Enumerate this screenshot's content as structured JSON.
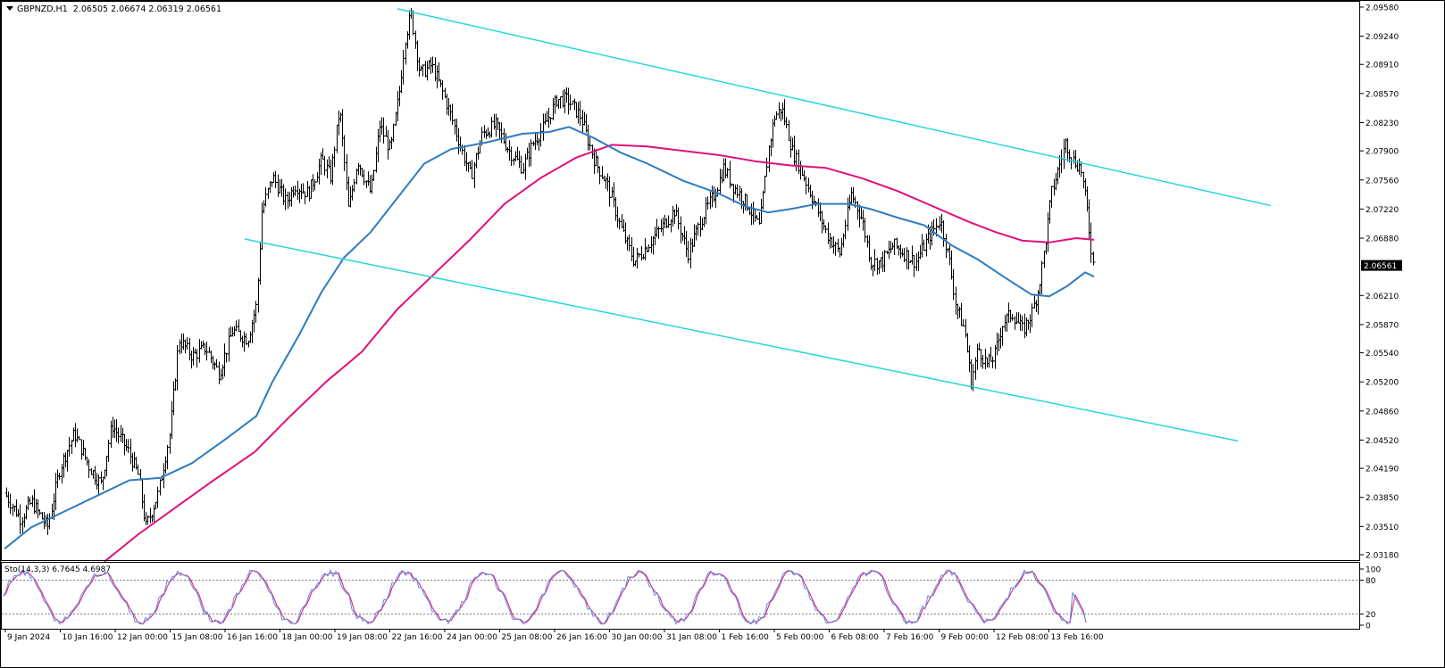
{
  "header": {
    "symbol": "GBPNZD,H1",
    "ohlc": "2.06505 2.06674 2.06319 2.06561"
  },
  "colors": {
    "price_bars": "#000000",
    "ma_fast": "#2f7bbf",
    "ma_slow": "#e0107a",
    "channel": "#27d7d7",
    "stoch_main": "#5a8fe0",
    "stoch_signal": "#e0107a",
    "current_price_bg": "#000000"
  },
  "chart_data": [
    {
      "type": "line",
      "title": "GBPNZD,H1",
      "ylim": [
        2.0318,
        2.0959
      ],
      "y_ticks": [
        "2.09580",
        "2.09240",
        "2.08910",
        "2.08570",
        "2.08230",
        "2.07900",
        "2.07560",
        "2.07220",
        "2.06880",
        "2.06561",
        "2.06210",
        "2.05870",
        "2.05540",
        "2.05200",
        "2.04860",
        "2.04520",
        "2.04190",
        "2.03850",
        "2.03510",
        "2.03180"
      ],
      "current_price": "2.06561",
      "x_labels": [
        "9 Jan 2024",
        "10 Jan 16:00",
        "12 Jan 00:00",
        "15 Jan 08:00",
        "16 Jan 16:00",
        "18 Jan 00:00",
        "19 Jan 08:00",
        "22 Jan 16:00",
        "24 Jan 00:00",
        "25 Jan 08:00",
        "26 Jan 16:00",
        "30 Jan 00:00",
        "31 Jan 08:00",
        "1 Feb 16:00",
        "5 Feb 00:00",
        "6 Feb 08:00",
        "7 Feb 16:00",
        "9 Feb 00:00",
        "12 Feb 08:00",
        "13 Feb 16:00"
      ],
      "price_path": [
        [
          0,
          2.039
        ],
        [
          18,
          2.036
        ],
        [
          30,
          2.038
        ],
        [
          48,
          2.035
        ],
        [
          62,
          2.042
        ],
        [
          78,
          2.046
        ],
        [
          95,
          2.042
        ],
        [
          108,
          2.04
        ],
        [
          120,
          2.047
        ],
        [
          138,
          2.044
        ],
        [
          150,
          2.041
        ],
        [
          158,
          2.035
        ],
        [
          172,
          2.039
        ],
        [
          185,
          2.046
        ],
        [
          195,
          2.057
        ],
        [
          210,
          2.055
        ],
        [
          225,
          2.056
        ],
        [
          240,
          2.053
        ],
        [
          255,
          2.058
        ],
        [
          272,
          2.057
        ],
        [
          282,
          2.061
        ],
        [
          288,
          2.072
        ],
        [
          300,
          2.076
        ],
        [
          315,
          2.073
        ],
        [
          325,
          2.075
        ],
        [
          340,
          2.074
        ],
        [
          355,
          2.078
        ],
        [
          365,
          2.076
        ],
        [
          375,
          2.084
        ],
        [
          385,
          2.072
        ],
        [
          395,
          2.078
        ],
        [
          410,
          2.074
        ],
        [
          420,
          2.082
        ],
        [
          432,
          2.079
        ],
        [
          442,
          2.086
        ],
        [
          448,
          2.092
        ],
        [
          455,
          2.095
        ],
        [
          465,
          2.088
        ],
        [
          478,
          2.089
        ],
        [
          490,
          2.086
        ],
        [
          500,
          2.083
        ],
        [
          512,
          2.079
        ],
        [
          522,
          2.076
        ],
        [
          535,
          2.081
        ],
        [
          550,
          2.082
        ],
        [
          565,
          2.079
        ],
        [
          580,
          2.077
        ],
        [
          592,
          2.08
        ],
        [
          605,
          2.082
        ],
        [
          618,
          2.085
        ],
        [
          630,
          2.085
        ],
        [
          645,
          2.083
        ],
        [
          660,
          2.078
        ],
        [
          675,
          2.075
        ],
        [
          690,
          2.07
        ],
        [
          705,
          2.066
        ],
        [
          720,
          2.068
        ],
        [
          735,
          2.07
        ],
        [
          750,
          2.072
        ],
        [
          765,
          2.067
        ],
        [
          780,
          2.071
        ],
        [
          795,
          2.074
        ],
        [
          805,
          2.077
        ],
        [
          815,
          2.075
        ],
        [
          830,
          2.073
        ],
        [
          845,
          2.07
        ],
        [
          855,
          2.079
        ],
        [
          862,
          2.083
        ],
        [
          870,
          2.084
        ],
        [
          882,
          2.079
        ],
        [
          895,
          2.076
        ],
        [
          910,
          2.072
        ],
        [
          922,
          2.069
        ],
        [
          935,
          2.067
        ],
        [
          948,
          2.074
        ],
        [
          960,
          2.071
        ],
        [
          970,
          2.066
        ],
        [
          982,
          2.066
        ],
        [
          995,
          2.068
        ],
        [
          1008,
          2.067
        ],
        [
          1020,
          2.066
        ],
        [
          1035,
          2.069
        ],
        [
          1048,
          2.071
        ],
        [
          1058,
          2.066
        ],
        [
          1065,
          2.061
        ],
        [
          1075,
          2.058
        ],
        [
          1082,
          2.052
        ],
        [
          1090,
          2.056
        ],
        [
          1100,
          2.054
        ],
        [
          1108,
          2.055
        ],
        [
          1118,
          2.059
        ],
        [
          1128,
          2.06
        ],
        [
          1140,
          2.058
        ],
        [
          1150,
          2.06
        ],
        [
          1158,
          2.063
        ],
        [
          1165,
          2.068
        ],
        [
          1172,
          2.074
        ],
        [
          1180,
          2.077
        ],
        [
          1188,
          2.08
        ],
        [
          1196,
          2.078
        ],
        [
          1205,
          2.077
        ],
        [
          1212,
          2.072
        ],
        [
          1218,
          2.066
        ],
        [
          1220,
          2.0656
        ]
      ],
      "ma_fast_path": [
        [
          0,
          2.0325
        ],
        [
          30,
          2.035
        ],
        [
          60,
          2.0365
        ],
        [
          100,
          2.0385
        ],
        [
          140,
          2.0405
        ],
        [
          175,
          2.0408
        ],
        [
          210,
          2.0425
        ],
        [
          250,
          2.0455
        ],
        [
          282,
          2.048
        ],
        [
          300,
          2.052
        ],
        [
          330,
          2.0575
        ],
        [
          355,
          2.0625
        ],
        [
          380,
          2.0665
        ],
        [
          410,
          2.0695
        ],
        [
          440,
          2.0735
        ],
        [
          470,
          2.0775
        ],
        [
          500,
          2.0792
        ],
        [
          540,
          2.08
        ],
        [
          580,
          2.081
        ],
        [
          610,
          2.0812
        ],
        [
          632,
          2.0818
        ],
        [
          660,
          2.0805
        ],
        [
          690,
          2.0788
        ],
        [
          720,
          2.0775
        ],
        [
          760,
          2.0755
        ],
        [
          800,
          2.074
        ],
        [
          830,
          2.0725
        ],
        [
          855,
          2.0718
        ],
        [
          880,
          2.0722
        ],
        [
          910,
          2.0728
        ],
        [
          945,
          2.0728
        ],
        [
          970,
          2.0722
        ],
        [
          1000,
          2.0712
        ],
        [
          1030,
          2.0703
        ],
        [
          1060,
          2.068
        ],
        [
          1090,
          2.0663
        ],
        [
          1120,
          2.0642
        ],
        [
          1150,
          2.0622
        ],
        [
          1170,
          2.062
        ],
        [
          1190,
          2.0632
        ],
        [
          1210,
          2.0648
        ],
        [
          1220,
          2.0643
        ]
      ],
      "ma_slow_path": [
        [
          112,
          2.031
        ],
        [
          150,
          2.0342
        ],
        [
          190,
          2.0372
        ],
        [
          230,
          2.0402
        ],
        [
          280,
          2.0438
        ],
        [
          320,
          2.048
        ],
        [
          360,
          2.052
        ],
        [
          400,
          2.0555
        ],
        [
          440,
          2.0605
        ],
        [
          480,
          2.0645
        ],
        [
          520,
          2.0685
        ],
        [
          560,
          2.0728
        ],
        [
          600,
          2.0758
        ],
        [
          640,
          2.0782
        ],
        [
          680,
          2.0797
        ],
        [
          720,
          2.0795
        ],
        [
          760,
          2.079
        ],
        [
          800,
          2.0785
        ],
        [
          840,
          2.0778
        ],
        [
          880,
          2.0773
        ],
        [
          920,
          2.077
        ],
        [
          960,
          2.0758
        ],
        [
          1000,
          2.0743
        ],
        [
          1040,
          2.0725
        ],
        [
          1080,
          2.0707
        ],
        [
          1110,
          2.0695
        ],
        [
          1140,
          2.0685
        ],
        [
          1170,
          2.0683
        ],
        [
          1200,
          2.0688
        ],
        [
          1220,
          2.0686
        ]
      ],
      "channel_upper": [
        [
          445,
          2.0956
        ],
        [
          1423,
          2.0726
        ]
      ],
      "channel_lower": [
        [
          274,
          2.0687
        ],
        [
          1386,
          2.0451
        ]
      ]
    },
    {
      "type": "line",
      "title": "Sto(14,3,3) 6.7645 4.6987",
      "ylim": [
        0,
        100
      ],
      "y_ticks": [
        "100",
        "80",
        "20",
        "0"
      ],
      "levels": [
        20,
        80
      ],
      "main_value": 6.7645,
      "signal_value": 4.6987
    }
  ]
}
